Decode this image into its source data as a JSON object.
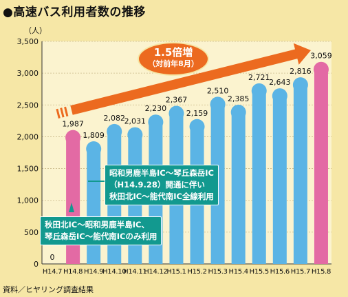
{
  "title": "●高速バス利用者数の推移",
  "source": "資料／ヒヤリング調査結果",
  "colors": {
    "background": "#f6e7a6",
    "bar_blue": "#5bb4e5",
    "bar_pink": "#e36aa4",
    "arrow": "#ec6a1f",
    "annotation": "#12998f"
  },
  "annotations": [
    {
      "lines": [
        "昭和男鹿半島IC～琴丘森岳IC",
        "（H14.9.28）開通に伴い",
        "秋田北IC～能代南IC全線利用"
      ]
    },
    {
      "lines": [
        "秋田北IC～昭和男鹿半島IC、",
        "琴丘森岳IC～能代南ICのみ利用"
      ]
    }
  ],
  "badge": {
    "line1": "1.5倍増",
    "line2": "（対前年8月）"
  },
  "chart_data": {
    "type": "bar",
    "ylabel": "（人）",
    "ylim": [
      0,
      3500
    ],
    "yticks": [
      0,
      500,
      1000,
      1500,
      2000,
      2500,
      3000,
      3500
    ],
    "ytick_labels": [
      "0",
      "500",
      "1,000",
      "1,500",
      "2,000",
      "2,500",
      "3,000",
      "3,500"
    ],
    "grid": true,
    "categories": [
      "H14.7",
      "H14.8",
      "H14.9",
      "H14.10",
      "H14.11",
      "H14.12",
      "H15.1",
      "H15.2",
      "H15.3",
      "H15.4",
      "H15.5",
      "H15.6",
      "H15.7",
      "H15.8"
    ],
    "values": [
      0,
      1987,
      1809,
      2082,
      2031,
      2230,
      2367,
      2159,
      2510,
      2385,
      2721,
      2643,
      2816,
      3059
    ],
    "value_labels": [
      "0",
      "1,987",
      "1,809",
      "2,082",
      "2,031",
      "2,230",
      "2,367",
      "2,159",
      "2,510",
      "2,385",
      "2,721",
      "2,643",
      "2,816",
      "3,059"
    ],
    "highlight_categories": [
      "H14.8",
      "H15.8"
    ]
  }
}
